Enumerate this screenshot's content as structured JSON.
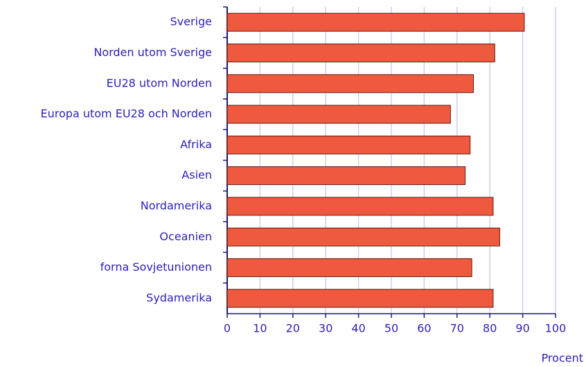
{
  "chart_data": {
    "type": "hbar",
    "categories": [
      "Sverige",
      "Norden utom Sverige",
      "EU28 utom Norden",
      "Europa utom EU28 och Norden",
      "Afrika",
      "Asien",
      "Nordamerika",
      "Oceanien",
      "forna Sovjetunionen",
      "Sydamerika"
    ],
    "values": [
      90.5,
      81.5,
      75,
      68,
      74,
      72.5,
      81,
      83,
      74.5,
      81
    ],
    "color": "#ef5a3e",
    "xlim": [
      0,
      100
    ],
    "xticks": [
      0,
      10,
      20,
      30,
      40,
      50,
      60,
      70,
      80,
      90,
      100
    ],
    "xlabel": "Procent",
    "grid": true
  }
}
